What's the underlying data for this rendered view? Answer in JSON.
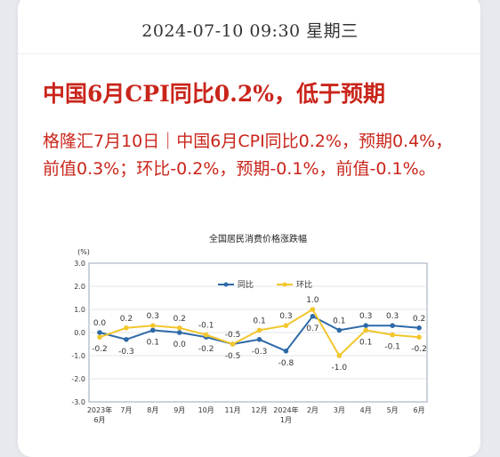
{
  "header": {
    "datetime": "2024-07-10 09:30 星期三"
  },
  "article": {
    "headline": "中国6月CPI同比0.2%，低于预期",
    "body": "格隆汇7月10日｜中国6月CPI同比0.2%，预期0.4%，前值0.3%；环比-0.2%，预期-0.1%，前值-0.1%。"
  },
  "chart_data": {
    "type": "line",
    "title": "全国居民消费价格涨跌幅",
    "ylabel": "(%)",
    "ylim": [
      -3.0,
      3.0
    ],
    "yticks": [
      "3.0",
      "2.0",
      "1.0",
      "0.0",
      "-1.0",
      "-2.0",
      "-3.0"
    ],
    "categories": [
      "2023年\n6月",
      "7月",
      "8月",
      "9月",
      "10月",
      "11月",
      "12月",
      "2024年\n1月",
      "2月",
      "3月",
      "4月",
      "5月",
      "6月"
    ],
    "series": [
      {
        "name": "同比",
        "color": "#2e6aa8",
        "values": [
          0.0,
          -0.3,
          0.1,
          0.0,
          -0.2,
          -0.5,
          -0.3,
          -0.8,
          0.7,
          0.1,
          0.3,
          0.3,
          0.2
        ],
        "labels": [
          "0.0",
          "-0.3",
          "0.1",
          "0.0",
          "-0.2",
          "-0.5",
          "-0.3",
          "-0.8",
          "0.7",
          "0.1",
          "0.3",
          "0.3",
          "0.2"
        ]
      },
      {
        "name": "环比",
        "color": "#f2c62c",
        "values": [
          -0.2,
          0.2,
          0.3,
          0.2,
          -0.1,
          -0.5,
          0.1,
          0.3,
          1.0,
          -1.0,
          0.1,
          -0.1,
          -0.2
        ],
        "labels": [
          "-0.2",
          "0.2",
          "0.3",
          "0.2",
          "-0.1",
          "-0.5",
          "0.1",
          "0.3",
          "1.0",
          "-1.0",
          "0.1",
          "-0.1",
          "-0.2"
        ]
      }
    ],
    "grid": true,
    "legend": "top-center"
  }
}
